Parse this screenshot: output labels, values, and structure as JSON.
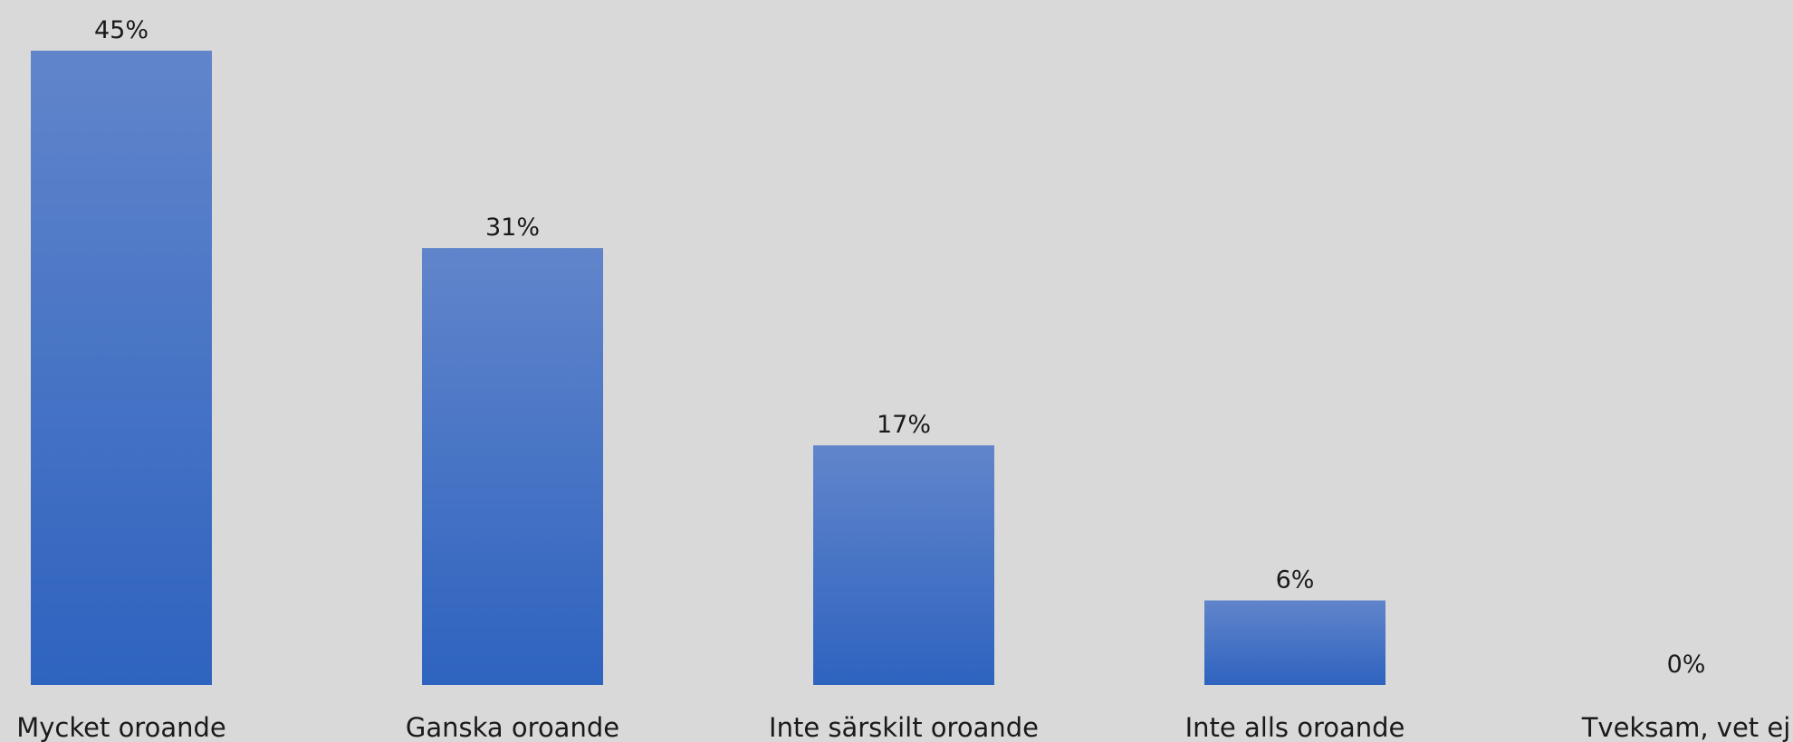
{
  "chart_data": {
    "type": "bar",
    "categories": [
      "Mycket oroande",
      "Ganska oroande",
      "Inte särskilt oroande",
      "Inte alls oroande",
      "Tveksam, vet ej"
    ],
    "values": [
      45,
      31,
      17,
      6,
      0
    ],
    "value_labels": [
      "45%",
      "31%",
      "17%",
      "6%",
      "0%"
    ],
    "unit": "%",
    "ylim": [
      0,
      45
    ],
    "grid": false,
    "legend": "none",
    "colors": {
      "background": "#d9d9d9",
      "bar_top": "#6185cb",
      "bar_bottom": "#2e63bf",
      "text": "#1a1a1a"
    }
  }
}
